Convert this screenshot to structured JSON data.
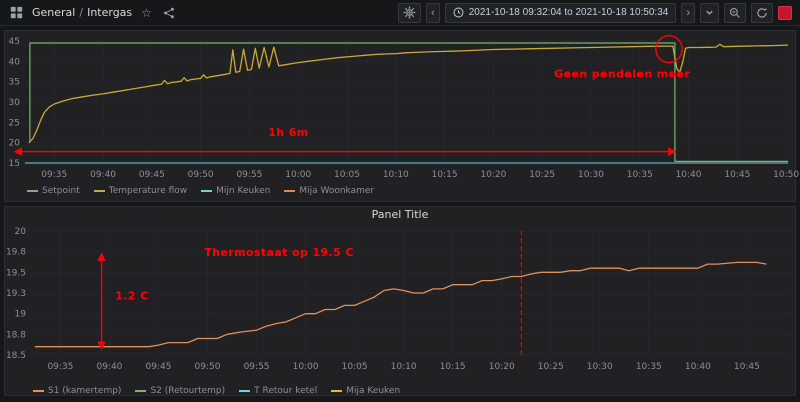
{
  "nav": {
    "breadcrumb": {
      "folder": "General",
      "separator": "/",
      "title": "Intergas"
    },
    "time_range": "2021-10-18 09:32:04 to 2021-10-18 10:50:34"
  },
  "icons": {
    "chevron_left": "‹",
    "chevron_right": "›",
    "star": "☆"
  },
  "bottom_panel": {
    "title": "Panel Title"
  },
  "chart_data": [
    {
      "type": "line",
      "title": "",
      "x_unit": "minutes after 09:32",
      "xrange": [
        0,
        78.5
      ],
      "yrange": [
        15,
        45
      ],
      "ylabelside": "left",
      "grid": true,
      "grid_color": "#26272b",
      "annotation_color": "#ff0000",
      "yticks": [
        {
          "v": 15,
          "label": "15"
        },
        {
          "v": 20,
          "label": "20"
        },
        {
          "v": 25,
          "label": "25"
        },
        {
          "v": 30,
          "label": "30"
        },
        {
          "v": 35,
          "label": "35"
        },
        {
          "v": 40,
          "label": "40"
        },
        {
          "v": 45,
          "label": "45"
        }
      ],
      "xticks": [
        {
          "t": 3,
          "label": "09:35"
        },
        {
          "t": 8,
          "label": "09:40"
        },
        {
          "t": 13,
          "label": "09:45"
        },
        {
          "t": 18,
          "label": "09:50"
        },
        {
          "t": 23,
          "label": "09:55"
        },
        {
          "t": 28,
          "label": "10:00"
        },
        {
          "t": 33,
          "label": "10:05"
        },
        {
          "t": 38,
          "label": "10:10"
        },
        {
          "t": 43,
          "label": "10:15"
        },
        {
          "t": 48,
          "label": "10:20"
        },
        {
          "t": 53,
          "label": "10:25"
        },
        {
          "t": 58,
          "label": "10:30"
        },
        {
          "t": 63,
          "label": "10:35"
        },
        {
          "t": 68,
          "label": "10:40"
        },
        {
          "t": 73,
          "label": "10:45"
        },
        {
          "t": 78,
          "label": "10:50"
        }
      ],
      "series": [
        {
          "name": "mijn-keuken",
          "label": "Mijn Keuken",
          "color": "#6ED0E0",
          "width": 1,
          "points": [
            [
              0,
              15
            ],
            [
              78.2,
              15
            ]
          ]
        },
        {
          "name": "setpoint",
          "label": "Setpoint",
          "color": "#7EB26D",
          "width": 1.2,
          "points": [
            [
              0.5,
              20
            ],
            [
              0.5,
              44.5
            ],
            [
              66.6,
              44.5
            ],
            [
              66.6,
              15.4
            ],
            [
              78.2,
              15.4
            ]
          ]
        },
        {
          "name": "temperature-flow",
          "label": "Temperature flow",
          "color": "#C7A838",
          "width": 1.3,
          "points": [
            [
              0.4,
              20
            ],
            [
              0.8,
              21
            ],
            [
              1.2,
              23
            ],
            [
              1.6,
              25.5
            ],
            [
              2,
              27.5
            ],
            [
              2.5,
              28.8
            ],
            [
              3,
              29.5
            ],
            [
              4,
              30.3
            ],
            [
              5,
              30.9
            ],
            [
              6,
              31.3
            ],
            [
              7,
              31.7
            ],
            [
              8,
              32
            ],
            [
              9,
              32.4
            ],
            [
              10,
              32.8
            ],
            [
              11,
              33.2
            ],
            [
              12,
              33.6
            ],
            [
              13,
              34
            ],
            [
              14,
              34.4
            ],
            [
              14.3,
              35.3
            ],
            [
              14.6,
              34.5
            ],
            [
              15,
              34.8
            ],
            [
              16,
              35.1
            ],
            [
              16.3,
              36
            ],
            [
              16.6,
              35.2
            ],
            [
              17,
              35.5
            ],
            [
              18,
              35.8
            ],
            [
              18.3,
              36.7
            ],
            [
              18.6,
              35.9
            ],
            [
              19,
              36.2
            ],
            [
              20,
              36.6
            ],
            [
              21,
              37
            ],
            [
              21.3,
              42.8
            ],
            [
              21.6,
              37.3
            ],
            [
              22,
              37.5
            ],
            [
              22.4,
              43
            ],
            [
              22.8,
              37.8
            ],
            [
              23.2,
              38
            ],
            [
              23.6,
              43.2
            ],
            [
              24,
              38.3
            ],
            [
              24.5,
              43.4
            ],
            [
              25,
              38.6
            ],
            [
              25.5,
              43.5
            ],
            [
              26,
              38.9
            ],
            [
              27,
              39.3
            ],
            [
              28,
              39.7
            ],
            [
              29,
              40
            ],
            [
              30,
              40.3
            ],
            [
              31,
              40.6
            ],
            [
              32,
              40.9
            ],
            [
              33,
              41.1
            ],
            [
              34,
              41.3
            ],
            [
              35,
              41.5
            ],
            [
              36,
              41.7
            ],
            [
              37,
              41.8
            ],
            [
              38,
              41.9
            ],
            [
              39,
              42.1
            ],
            [
              40,
              42.2
            ],
            [
              41,
              42.3
            ],
            [
              42,
              42.4
            ],
            [
              43,
              42.45
            ],
            [
              44,
              42.5
            ],
            [
              46,
              42.7
            ],
            [
              48,
              42.9
            ],
            [
              50,
              43
            ],
            [
              52,
              43.1
            ],
            [
              54,
              43.2
            ],
            [
              56,
              43.3
            ],
            [
              58,
              43.4
            ],
            [
              60,
              43.5
            ],
            [
              62,
              43.6
            ],
            [
              64,
              43.7
            ],
            [
              66,
              43.75
            ],
            [
              66.4,
              43.75
            ],
            [
              66.8,
              38.2
            ],
            [
              67.1,
              37.3
            ],
            [
              67.4,
              39.8
            ],
            [
              67.7,
              43.2
            ],
            [
              68,
              43.4
            ],
            [
              69,
              43.4
            ],
            [
              70,
              43.45
            ],
            [
              70.8,
              43.5
            ],
            [
              71.2,
              44.2
            ],
            [
              71.6,
              43.6
            ],
            [
              73,
              43.7
            ],
            [
              75,
              43.8
            ],
            [
              77,
              43.9
            ],
            [
              78.2,
              44
            ]
          ]
        }
      ],
      "legend": [
        {
          "label": "Setpoint",
          "color": "#7EB26D"
        },
        {
          "label": "Temperature flow",
          "color": "#C7A838"
        },
        {
          "label": "Mijn Keuken",
          "color": "#6ED0E0"
        },
        {
          "label": "Mija Woonkamer",
          "color": "#EF843C"
        }
      ],
      "annotations": [
        {
          "type": "harrow",
          "t1": -1,
          "t2": 66.6,
          "v": 17.8
        },
        {
          "type": "text",
          "t": 27,
          "v": 21.7,
          "text": "1h 6m"
        },
        {
          "type": "text",
          "t": 61.2,
          "v": 36,
          "text": "Geen pendelen meer"
        },
        {
          "type": "ellipse",
          "t": 66,
          "v": 43,
          "rt": 1.35,
          "rv": 3.3
        }
      ]
    },
    {
      "type": "line",
      "title": "Panel Title",
      "x_unit": "minutes after 09:32",
      "xrange": [
        0,
        77.5
      ],
      "yrange": [
        18.5,
        20
      ],
      "grid": true,
      "grid_color": "#26272b",
      "annotation_color": "#ff0000",
      "yticks": [
        {
          "v": 18.5,
          "label": "18.5"
        },
        {
          "v": 18.75,
          "label": "18.8"
        },
        {
          "v": 19,
          "label": "19"
        },
        {
          "v": 19.25,
          "label": "19.3"
        },
        {
          "v": 19.5,
          "label": "19.5"
        },
        {
          "v": 19.75,
          "label": "19.8"
        },
        {
          "v": 20,
          "label": "20"
        }
      ],
      "xticks": [
        {
          "t": 3,
          "label": "09:35"
        },
        {
          "t": 8,
          "label": "09:40"
        },
        {
          "t": 13,
          "label": "09:45"
        },
        {
          "t": 18,
          "label": "09:50"
        },
        {
          "t": 23,
          "label": "09:55"
        },
        {
          "t": 28,
          "label": "10:00"
        },
        {
          "t": 33,
          "label": "10:05"
        },
        {
          "t": 38,
          "label": "10:10"
        },
        {
          "t": 43,
          "label": "10:15"
        },
        {
          "t": 48,
          "label": "10:20"
        },
        {
          "t": 53,
          "label": "10:25"
        },
        {
          "t": 58,
          "label": "10:30"
        },
        {
          "t": 63,
          "label": "10:35"
        },
        {
          "t": 68,
          "label": "10:40"
        },
        {
          "t": 73,
          "label": "10:45"
        }
      ],
      "series": [
        {
          "name": "s1-kamertemp",
          "label": "S1 (kamertemp)",
          "color": "#E09058",
          "width": 1.3,
          "points": [
            [
              0.4,
              18.6
            ],
            [
              12,
              18.6
            ],
            [
              13,
              18.62
            ],
            [
              14,
              18.65
            ],
            [
              16,
              18.65
            ],
            [
              17,
              18.7
            ],
            [
              19,
              18.7
            ],
            [
              20,
              18.75
            ],
            [
              21.5,
              18.78
            ],
            [
              23,
              18.8
            ],
            [
              24,
              18.85
            ],
            [
              25,
              18.88
            ],
            [
              26,
              18.9
            ],
            [
              27,
              18.95
            ],
            [
              28,
              19
            ],
            [
              29,
              19
            ],
            [
              30,
              19.05
            ],
            [
              31,
              19.05
            ],
            [
              32,
              19.1
            ],
            [
              33,
              19.1
            ],
            [
              34,
              19.15
            ],
            [
              35,
              19.2
            ],
            [
              36,
              19.28
            ],
            [
              37,
              19.3
            ],
            [
              38,
              19.28
            ],
            [
              39,
              19.25
            ],
            [
              40,
              19.25
            ],
            [
              41,
              19.3
            ],
            [
              42,
              19.3
            ],
            [
              43,
              19.35
            ],
            [
              45,
              19.35
            ],
            [
              46,
              19.4
            ],
            [
              47,
              19.4
            ],
            [
              48,
              19.42
            ],
            [
              49,
              19.45
            ],
            [
              50,
              19.45
            ],
            [
              51,
              19.48
            ],
            [
              52,
              19.5
            ],
            [
              54,
              19.5
            ],
            [
              55,
              19.52
            ],
            [
              56,
              19.52
            ],
            [
              57,
              19.55
            ],
            [
              60,
              19.55
            ],
            [
              61,
              19.52
            ],
            [
              62,
              19.55
            ],
            [
              68,
              19.55
            ],
            [
              69,
              19.6
            ],
            [
              70,
              19.6
            ],
            [
              72,
              19.62
            ],
            [
              74,
              19.62
            ],
            [
              75,
              19.6
            ]
          ]
        }
      ],
      "legend": [
        {
          "label": "S1 (kamertemp)",
          "color": "#E09058"
        },
        {
          "label": "S2 (Retourtemp)",
          "color": "#7EB26D"
        },
        {
          "label": "T Retour ketel",
          "color": "#6ED0E0"
        },
        {
          "label": "Mija Keuken",
          "color": "#EAB839"
        }
      ],
      "annotations": [
        {
          "type": "vline",
          "t": 50,
          "v1": 18.5,
          "v2": 20
        },
        {
          "type": "varrow",
          "t": 7.2,
          "v1": 18.58,
          "v2": 19.72
        },
        {
          "type": "text",
          "t": 10.3,
          "v": 19.17,
          "text": "1.2 C"
        },
        {
          "type": "text",
          "t": 25.3,
          "v": 19.7,
          "text": "Thermostaat op 19.5 C"
        }
      ]
    }
  ]
}
